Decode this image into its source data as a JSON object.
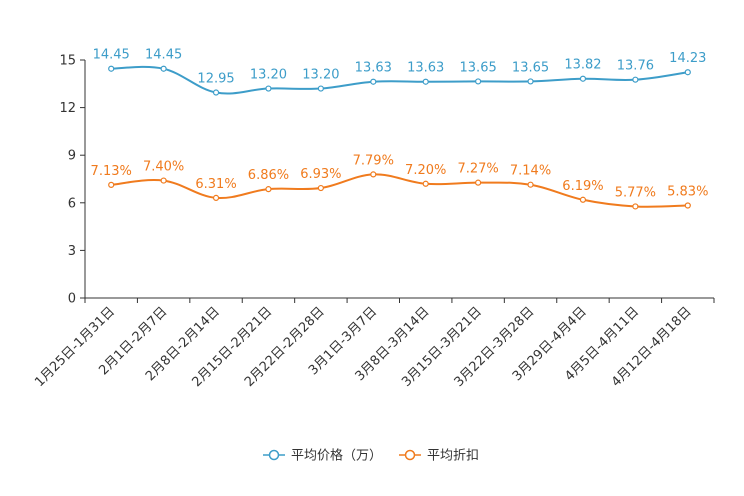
{
  "chart_data": {
    "type": "line",
    "title": "",
    "xlabel": "",
    "ylabel": "",
    "ylim": [
      0,
      15
    ],
    "yticks": [
      0,
      3,
      6,
      9,
      12,
      15
    ],
    "grid": false,
    "legend_position": "bottom-center",
    "categories": [
      "1月25日-1月31日",
      "2月1日-2月7日",
      "2月8日-2月14日",
      "2月15日-2月21日",
      "2月22日-2月28日",
      "3月1日-3月7日",
      "3月8日-3月14日",
      "3月15日-3月21日",
      "3月22日-3月28日",
      "3月29日-4月4日",
      "4月5日-4月11日",
      "4月12日-4月18日"
    ],
    "series": [
      {
        "name": "平均价格（万）",
        "color": "#3d9dc9",
        "values": [
          14.45,
          14.45,
          12.95,
          13.2,
          13.2,
          13.63,
          13.63,
          13.65,
          13.65,
          13.82,
          13.76,
          14.23
        ],
        "labels": [
          "14.45",
          "14.45",
          "12.95",
          "13.20",
          "13.20",
          "13.63",
          "13.63",
          "13.65",
          "13.65",
          "13.82",
          "13.76",
          "14.23"
        ]
      },
      {
        "name": "平均折扣",
        "color": "#f07b1e",
        "values": [
          7.13,
          7.4,
          6.31,
          6.86,
          6.93,
          7.79,
          7.2,
          7.27,
          7.14,
          6.19,
          5.77,
          5.83
        ],
        "labels": [
          "7.13%",
          "7.40%",
          "6.31%",
          "6.86%",
          "6.93%",
          "7.79%",
          "7.20%",
          "7.27%",
          "7.14%",
          "6.19%",
          "5.77%",
          "5.83%"
        ]
      }
    ]
  }
}
